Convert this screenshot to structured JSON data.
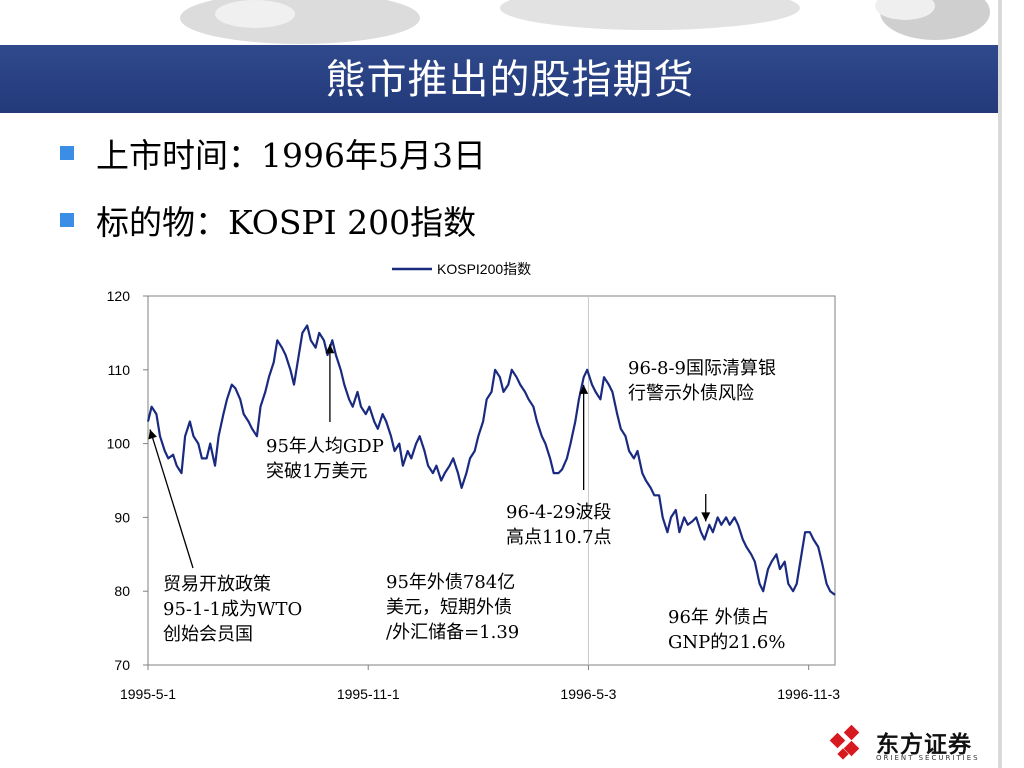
{
  "slide": {
    "title": "熊市推出的股指期货",
    "bullets": [
      {
        "label": "上市时间：",
        "value": "1996年5月3日"
      },
      {
        "label": "标的物：",
        "value": "KOSPI 200指数"
      }
    ]
  },
  "logo": {
    "name": "东方证券",
    "sub": "ORIENT SECURITIES"
  },
  "colors": {
    "banner": "#23397a",
    "line": "#1a2a80",
    "bullet": "#3a8ee6"
  },
  "chart_data": {
    "type": "line",
    "title": "",
    "legend": {
      "position": "top-center",
      "entries": [
        "KOSPI200指数"
      ]
    },
    "ylim": [
      70,
      120
    ],
    "yticks": [
      "70",
      "80",
      "90",
      "100",
      "110",
      "120"
    ],
    "xticks": [
      "1995-5-1",
      "1995-11-1",
      "1996-5-3",
      "1996-11-3"
    ],
    "grid": false,
    "series": [
      {
        "name": "KOSPI200指数",
        "points": [
          [
            "1995-05-01",
            103
          ],
          [
            "1995-05-04",
            105
          ],
          [
            "1995-05-08",
            104
          ],
          [
            "1995-05-11",
            101
          ],
          [
            "1995-05-15",
            99
          ],
          [
            "1995-05-18",
            98
          ],
          [
            "1995-05-22",
            98.5
          ],
          [
            "1995-05-25",
            97
          ],
          [
            "1995-05-29",
            96
          ],
          [
            "1995-06-01",
            101
          ],
          [
            "1995-06-05",
            103
          ],
          [
            "1995-06-08",
            101
          ],
          [
            "1995-06-12",
            100
          ],
          [
            "1995-06-15",
            98
          ],
          [
            "1995-06-19",
            98
          ],
          [
            "1995-06-22",
            100
          ],
          [
            "1995-06-26",
            97
          ],
          [
            "1995-06-29",
            101
          ],
          [
            "1995-07-03",
            104
          ],
          [
            "1995-07-06",
            106
          ],
          [
            "1995-07-10",
            108
          ],
          [
            "1995-07-13",
            107.5
          ],
          [
            "1995-07-17",
            106
          ],
          [
            "1995-07-20",
            104
          ],
          [
            "1995-07-24",
            103
          ],
          [
            "1995-07-27",
            102
          ],
          [
            "1995-07-31",
            101
          ],
          [
            "1995-08-03",
            105
          ],
          [
            "1995-08-07",
            107
          ],
          [
            "1995-08-10",
            109
          ],
          [
            "1995-08-14",
            111
          ],
          [
            "1995-08-17",
            114
          ],
          [
            "1995-08-21",
            113
          ],
          [
            "1995-08-24",
            112
          ],
          [
            "1995-08-28",
            110
          ],
          [
            "1995-08-31",
            108
          ],
          [
            "1995-09-04",
            112
          ],
          [
            "1995-09-07",
            115
          ],
          [
            "1995-09-11",
            116
          ],
          [
            "1995-09-14",
            114
          ],
          [
            "1995-09-18",
            113
          ],
          [
            "1995-09-21",
            115
          ],
          [
            "1995-09-25",
            114
          ],
          [
            "1995-09-28",
            112
          ],
          [
            "1995-10-02",
            114
          ],
          [
            "1995-10-05",
            112
          ],
          [
            "1995-10-09",
            110
          ],
          [
            "1995-10-12",
            108
          ],
          [
            "1995-10-16",
            106
          ],
          [
            "1995-10-19",
            105
          ],
          [
            "1995-10-23",
            107
          ],
          [
            "1995-10-26",
            105
          ],
          [
            "1995-10-30",
            104
          ],
          [
            "1995-11-02",
            105
          ],
          [
            "1995-11-06",
            103
          ],
          [
            "1995-11-09",
            102
          ],
          [
            "1995-11-13",
            104
          ],
          [
            "1995-11-16",
            103
          ],
          [
            "1995-11-20",
            101
          ],
          [
            "1995-11-23",
            99
          ],
          [
            "1995-11-27",
            100
          ],
          [
            "1995-11-30",
            97
          ],
          [
            "1995-12-04",
            99
          ],
          [
            "1995-12-07",
            98
          ],
          [
            "1995-12-11",
            100
          ],
          [
            "1995-12-14",
            101
          ],
          [
            "1995-12-18",
            99
          ],
          [
            "1995-12-21",
            97
          ],
          [
            "1995-12-25",
            96
          ],
          [
            "1995-12-28",
            97
          ],
          [
            "1996-01-01",
            95
          ],
          [
            "1996-01-04",
            96
          ],
          [
            "1996-01-08",
            97
          ],
          [
            "1996-01-11",
            98
          ],
          [
            "1996-01-15",
            96
          ],
          [
            "1996-01-18",
            94
          ],
          [
            "1996-01-22",
            96
          ],
          [
            "1996-01-25",
            98
          ],
          [
            "1996-01-29",
            99
          ],
          [
            "1996-02-01",
            101
          ],
          [
            "1996-02-05",
            103
          ],
          [
            "1996-02-08",
            106
          ],
          [
            "1996-02-12",
            107
          ],
          [
            "1996-02-15",
            110
          ],
          [
            "1996-02-19",
            109
          ],
          [
            "1996-02-22",
            107
          ],
          [
            "1996-02-26",
            108
          ],
          [
            "1996-02-29",
            110
          ],
          [
            "1996-03-04",
            109
          ],
          [
            "1996-03-07",
            108
          ],
          [
            "1996-03-11",
            107
          ],
          [
            "1996-03-14",
            106
          ],
          [
            "1996-03-18",
            105
          ],
          [
            "1996-03-21",
            103
          ],
          [
            "1996-03-25",
            101
          ],
          [
            "1996-03-28",
            100
          ],
          [
            "1996-04-01",
            98
          ],
          [
            "1996-04-04",
            96
          ],
          [
            "1996-04-08",
            96
          ],
          [
            "1996-04-11",
            96.5
          ],
          [
            "1996-04-15",
            98
          ],
          [
            "1996-04-18",
            100
          ],
          [
            "1996-04-22",
            103
          ],
          [
            "1996-04-25",
            106
          ],
          [
            "1996-04-29",
            109
          ],
          [
            "1996-05-02",
            110
          ],
          [
            "1996-05-06",
            108
          ],
          [
            "1996-05-09",
            107
          ],
          [
            "1996-05-13",
            106
          ],
          [
            "1996-05-16",
            109
          ],
          [
            "1996-05-20",
            108
          ],
          [
            "1996-05-23",
            107
          ],
          [
            "1996-05-27",
            104
          ],
          [
            "1996-05-30",
            102
          ],
          [
            "1996-06-03",
            101
          ],
          [
            "1996-06-06",
            99
          ],
          [
            "1996-06-10",
            98
          ],
          [
            "1996-06-13",
            99
          ],
          [
            "1996-06-17",
            96
          ],
          [
            "1996-06-20",
            95
          ],
          [
            "1996-06-24",
            94
          ],
          [
            "1996-06-27",
            93
          ],
          [
            "1996-07-01",
            93
          ],
          [
            "1996-07-04",
            90
          ],
          [
            "1996-07-08",
            88
          ],
          [
            "1996-07-11",
            90
          ],
          [
            "1996-07-15",
            91
          ],
          [
            "1996-07-18",
            88
          ],
          [
            "1996-07-22",
            90
          ],
          [
            "1996-07-25",
            89
          ],
          [
            "1996-07-29",
            89.5
          ],
          [
            "1996-08-01",
            90
          ],
          [
            "1996-08-05",
            88
          ],
          [
            "1996-08-08",
            87
          ],
          [
            "1996-08-12",
            89
          ],
          [
            "1996-08-15",
            88
          ],
          [
            "1996-08-19",
            90
          ],
          [
            "1996-08-22",
            89
          ],
          [
            "1996-08-26",
            90
          ],
          [
            "1996-08-29",
            89
          ],
          [
            "1996-09-02",
            90
          ],
          [
            "1996-09-05",
            89
          ],
          [
            "1996-09-09",
            87
          ],
          [
            "1996-09-12",
            86
          ],
          [
            "1996-09-16",
            85
          ],
          [
            "1996-09-19",
            84
          ],
          [
            "1996-09-23",
            81
          ],
          [
            "1996-09-26",
            80
          ],
          [
            "1996-09-30",
            83
          ],
          [
            "1996-10-03",
            84
          ],
          [
            "1996-10-07",
            85
          ],
          [
            "1996-10-10",
            83
          ],
          [
            "1996-10-14",
            84
          ],
          [
            "1996-10-17",
            81
          ],
          [
            "1996-10-21",
            80
          ],
          [
            "1996-10-24",
            81
          ],
          [
            "1996-10-28",
            85
          ],
          [
            "1996-10-31",
            88
          ],
          [
            "1996-11-04",
            88
          ],
          [
            "1996-11-07",
            87
          ],
          [
            "1996-11-11",
            86
          ],
          [
            "1996-11-14",
            84
          ],
          [
            "1996-11-18",
            81
          ],
          [
            "1996-11-21",
            80
          ],
          [
            "1996-11-25",
            79.5
          ]
        ]
      }
    ],
    "annotations": [
      {
        "text": "96-8-9国际清算银\n行警示外债风险",
        "x": "1996-08-09",
        "y": 90
      },
      {
        "text": "95年人均GDP\n突破1万美元",
        "x": "1995-09-30",
        "y": 114
      },
      {
        "text": "96-4-29波段\n高点110.7点",
        "x": "1996-04-29",
        "y": 108.5
      },
      {
        "text": "贸易开放政策\n95-1-1成为WTO\n创始会员国",
        "x": "1995-05-01",
        "y": 103
      },
      {
        "text": "95年外债784亿\n美元，短期外债\n/外汇储备=1.39",
        "x": "",
        "y": null
      },
      {
        "text": "96年 外债占\nGNP的21.6%",
        "x": "",
        "y": null
      }
    ]
  }
}
